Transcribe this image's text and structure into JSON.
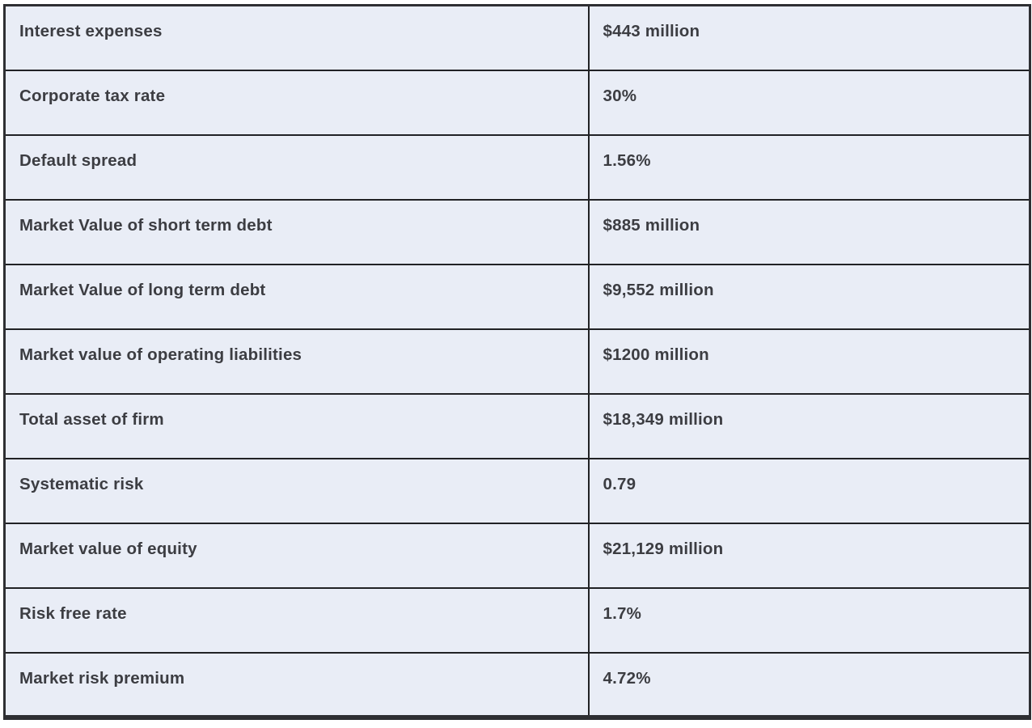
{
  "chart_data": {
    "type": "table",
    "title": "",
    "rows": [
      {
        "label": "Interest expenses",
        "value": "$443 million"
      },
      {
        "label": "Corporate tax rate",
        "value": "30%"
      },
      {
        "label": "Default spread",
        "value": "1.56%"
      },
      {
        "label": "Market Value of short term debt",
        "value": "$885 million"
      },
      {
        "label": "Market Value of long term debt",
        "value": "$9,552 million"
      },
      {
        "label": "Market value of operating liabilities",
        "value": "$1200 million"
      },
      {
        "label": "Total asset of firm",
        "value": "$18,349 million"
      },
      {
        "label": "Systematic risk",
        "value": "0.79"
      },
      {
        "label": "Market value of equity",
        "value": "$21,129 million"
      },
      {
        "label": "Risk free rate",
        "value": "1.7%"
      },
      {
        "label": "Market risk premium",
        "value": "4.72%"
      }
    ]
  },
  "colors": {
    "cell_background": "#e9edf6",
    "border": "#212225",
    "outer_border": "#2e2f33",
    "text": "#3c3d42",
    "page_background": "#ffffff"
  }
}
